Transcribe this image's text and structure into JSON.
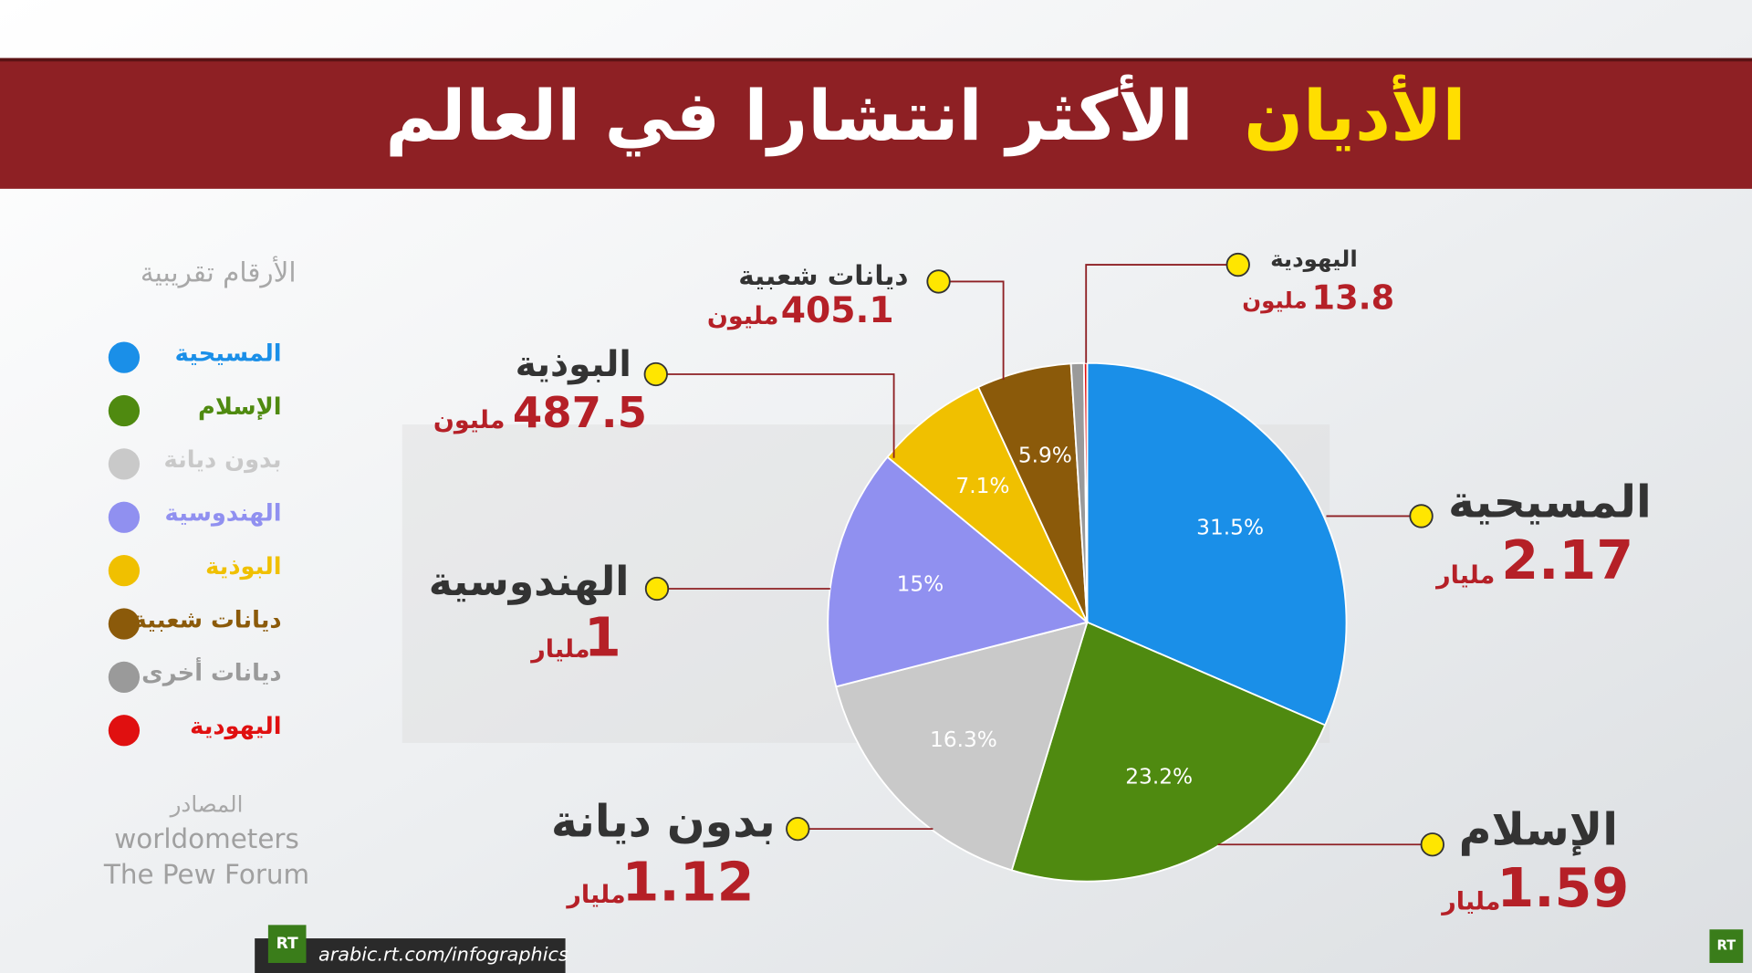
{
  "chart_data": {
    "type": "pie",
    "title_highlight": "الأديان",
    "title": "الأكثر انتشارا في العالم",
    "legend_title": "الأرقام تقريبية",
    "categories": [
      "المسيحية",
      "الإسلام",
      "بدون ديانة",
      "الهندوسية",
      "البوذية",
      "ديانات شعبية",
      "ديانات أخرى",
      "اليهودية"
    ],
    "values": [
      31.5,
      23.2,
      16.3,
      15,
      7.1,
      5.9,
      0.8,
      0.2
    ],
    "value_labels": [
      "31.5%",
      "23.2%",
      "16.3%",
      "15%",
      "7.1%",
      "5.9%",
      null,
      null
    ],
    "colors": [
      "#1a8fe8",
      "#4f8a10",
      "#c9c9c9",
      "#9090f0",
      "#f0c000",
      "#8b5a0a",
      "#9a9a9a",
      "#e01010"
    ],
    "amounts": [
      2.17,
      1.59,
      1.12,
      1,
      487.5,
      405.1,
      null,
      13.8
    ],
    "amount_units": [
      "مليار",
      "مليار",
      "مليار",
      "مليار",
      "مليون",
      "مليون",
      null,
      "مليون"
    ],
    "sources_title": "المصادر",
    "sources": [
      "worldometers",
      "The Pew Forum"
    ],
    "logo": "RT",
    "url": "arabic.rt.com/infographics"
  }
}
